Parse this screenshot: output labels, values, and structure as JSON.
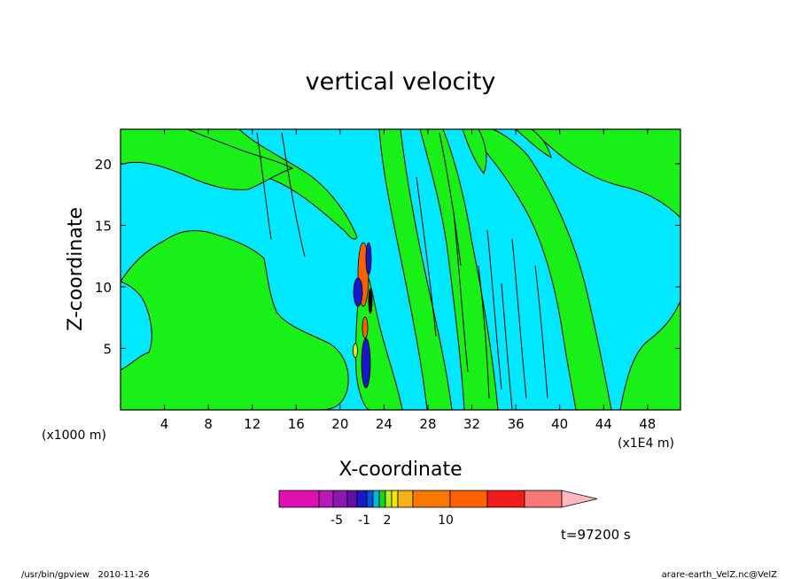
{
  "chart_data": {
    "type": "heatmap",
    "title": "vertical velocity",
    "xlabel": "X-coordinate",
    "ylabel": "Z-coordinate",
    "x_unit_left": "(x1000 m)",
    "x_unit_right": "(x1E4 m)",
    "xlim": [
      0,
      51
    ],
    "ylim": [
      0,
      22.8
    ],
    "xticks": [
      4,
      8,
      12,
      16,
      20,
      24,
      28,
      32,
      36,
      40,
      44,
      48
    ],
    "yticks": [
      5,
      10,
      15,
      20
    ],
    "colorbar": {
      "colors": [
        "#e010b0",
        "#b818b8",
        "#8c18b0",
        "#6010a8",
        "#1818c8",
        "#0850e0",
        "#00b8e0",
        "#10d818",
        "#b8f018",
        "#f0e800",
        "#f8b018",
        "#f87800",
        "#ff6000",
        "#ef1c1c",
        "#f87878",
        "#ffb8c0"
      ],
      "labels": [
        "-5",
        "-1",
        "2",
        "10"
      ]
    },
    "time_label": "t=97200 s"
  },
  "footer": {
    "left": "/usr/bin/gpview   2010-11-26",
    "right": "arare-earth_VelZ.nc@VelZ"
  },
  "colors": {
    "background_field": "#00e8ff",
    "band_field": "#18f018"
  }
}
